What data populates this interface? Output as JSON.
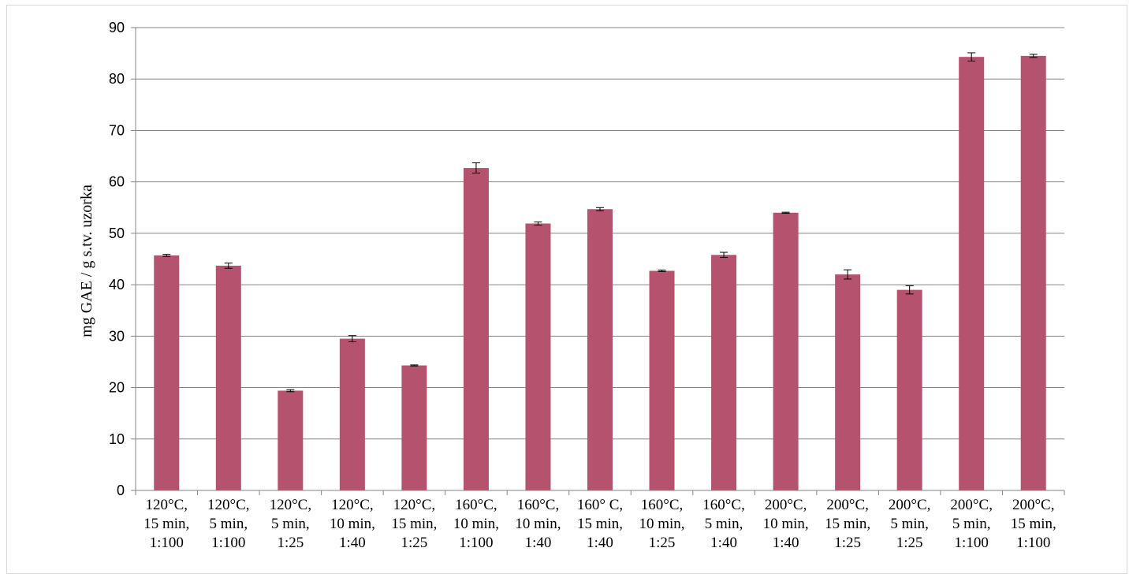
{
  "chart_data": {
    "type": "bar",
    "categories": [
      [
        "120°C,",
        "15 min,",
        "1:100"
      ],
      [
        "120°C,",
        "5 min,",
        "1:100"
      ],
      [
        "120°C,",
        "5 min,",
        "1:25"
      ],
      [
        "120°C,",
        "10 min,",
        "1:40"
      ],
      [
        "120°C,",
        "15 min,",
        "1:25"
      ],
      [
        "160°C,",
        "10 min,",
        "1:100"
      ],
      [
        "160°C,",
        "10 min,",
        "1:40"
      ],
      [
        "160° C,",
        "15 min,",
        "1:40"
      ],
      [
        "160°C,",
        "10 min,",
        "1:25"
      ],
      [
        "160°C,",
        "5 min,",
        "1:40"
      ],
      [
        "200°C,",
        "10 min,",
        "1:40"
      ],
      [
        "200°C,",
        "15 min,",
        "1:25"
      ],
      [
        "200°C,",
        "5 min,",
        "1:25"
      ],
      [
        "200°C,",
        "5 min,",
        "1:100"
      ],
      [
        "200°C,",
        "15 min,",
        "1:100"
      ]
    ],
    "values": [
      45.7,
      43.7,
      19.4,
      29.5,
      24.3,
      62.7,
      51.9,
      54.7,
      42.7,
      45.8,
      54.0,
      42.0,
      39.0,
      84.3,
      84.5
    ],
    "errors": [
      0.2,
      0.5,
      0.2,
      0.6,
      0.1,
      1.0,
      0.3,
      0.3,
      0.15,
      0.5,
      0.1,
      0.9,
      0.8,
      0.8,
      0.3
    ],
    "title": "",
    "xlabel": "",
    "ylabel": "mg GAE / g s.tv. uzorka",
    "ylim": [
      0,
      90
    ],
    "yticks": [
      0,
      10,
      20,
      30,
      40,
      50,
      60,
      70,
      80,
      90
    ],
    "grid": true,
    "legend": "none",
    "bar_color": "#b5536f",
    "grid_color": "#868686"
  }
}
